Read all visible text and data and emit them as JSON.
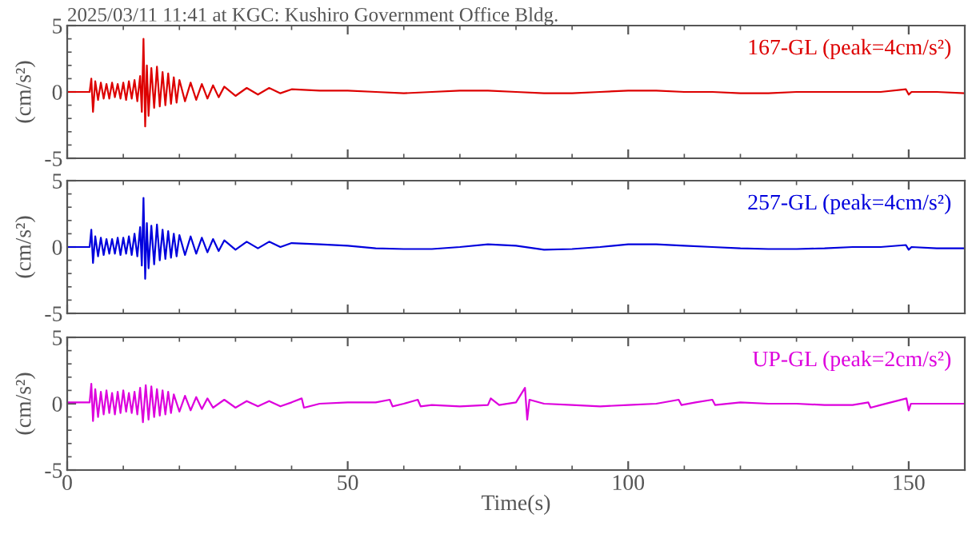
{
  "chart_data": [
    {
      "type": "line",
      "title": "2025/03/11 11:41 at KGC: Kushiro Government Office Bldg.",
      "ylabel": "(cm/s²)",
      "xlim": [
        0,
        160
      ],
      "ylim": [
        -5,
        5
      ],
      "xticks": [
        0,
        50,
        100,
        150
      ],
      "yticks": [
        -5,
        0,
        5
      ],
      "tick_labels": "y",
      "legend": "top right",
      "grid": false,
      "series": [
        {
          "name": "167-GL (peak=4cm/s²)",
          "color": "#dd0000",
          "x": [
            0,
            4,
            4.3,
            4.6,
            5,
            5.5,
            6,
            6.5,
            7,
            7.5,
            8,
            8.5,
            9,
            9.5,
            10,
            10.5,
            11,
            11.5,
            12,
            12.5,
            13,
            13.3,
            13.6,
            13.9,
            14.2,
            14.5,
            15,
            15.5,
            16,
            16.5,
            17,
            17.5,
            18,
            18.5,
            19,
            19.5,
            20,
            21,
            22,
            23,
            24,
            25,
            26,
            27,
            28,
            30,
            32,
            34,
            36,
            38,
            40,
            45,
            50,
            55,
            60,
            65,
            70,
            75,
            80,
            85,
            90,
            95,
            100,
            105,
            110,
            115,
            120,
            125,
            130,
            135,
            140,
            145,
            149.5,
            150,
            150.5,
            155,
            160
          ],
          "values": [
            0,
            0,
            1.0,
            -1.5,
            0.8,
            -0.6,
            0.7,
            -0.5,
            0.6,
            -0.5,
            0.7,
            -0.4,
            0.6,
            -0.5,
            0.7,
            -0.6,
            0.8,
            -0.5,
            0.9,
            -0.7,
            1.2,
            -1.5,
            4.0,
            -2.6,
            2.0,
            -1.8,
            1.8,
            -1.2,
            1.9,
            -1.1,
            1.5,
            -1.0,
            1.4,
            -0.9,
            1.1,
            -0.8,
            0.9,
            -0.7,
            0.7,
            -0.6,
            0.6,
            -0.5,
            0.5,
            -0.4,
            0.4,
            -0.3,
            0.3,
            -0.2,
            0.3,
            -0.1,
            0.2,
            0.1,
            0.1,
            0.0,
            -0.1,
            0.0,
            0.1,
            0.1,
            0.0,
            -0.1,
            -0.1,
            0.0,
            0.1,
            0.1,
            0.0,
            0.0,
            -0.1,
            -0.1,
            0.0,
            0.0,
            0.0,
            0.0,
            0.2,
            -0.2,
            0.0,
            0.0,
            -0.1
          ]
        }
      ]
    },
    {
      "type": "line",
      "ylabel": "(cm/s²)",
      "xlim": [
        0,
        160
      ],
      "ylim": [
        -5,
        5
      ],
      "xticks": [
        0,
        50,
        100,
        150
      ],
      "yticks": [
        -5,
        0,
        5
      ],
      "tick_labels": "y",
      "legend": "top right",
      "grid": false,
      "series": [
        {
          "name": "257-GL (peak=4cm/s²)",
          "color": "#0000dd",
          "x": [
            0,
            4,
            4.3,
            4.6,
            5,
            5.5,
            6,
            6.5,
            7,
            7.5,
            8,
            8.5,
            9,
            9.5,
            10,
            10.5,
            11,
            11.5,
            12,
            12.5,
            13,
            13.3,
            13.6,
            13.9,
            14.2,
            14.5,
            15,
            15.5,
            16,
            16.5,
            17,
            17.5,
            18,
            18.5,
            19,
            19.5,
            20,
            21,
            22,
            23,
            24,
            25,
            26,
            27,
            28,
            30,
            32,
            34,
            36,
            38,
            40,
            45,
            50,
            55,
            60,
            65,
            70,
            75,
            80,
            85,
            90,
            95,
            100,
            105,
            110,
            115,
            120,
            125,
            130,
            135,
            140,
            145,
            149.5,
            150,
            150.5,
            155,
            160
          ],
          "values": [
            0,
            0,
            1.3,
            -1.2,
            0.8,
            -0.7,
            0.7,
            -0.6,
            0.6,
            -0.5,
            0.6,
            -0.5,
            0.7,
            -0.6,
            0.7,
            -0.5,
            0.8,
            -0.6,
            1.0,
            -0.7,
            1.5,
            -1.4,
            3.7,
            -2.4,
            1.8,
            -1.6,
            1.6,
            -1.3,
            1.7,
            -1.0,
            1.3,
            -0.9,
            1.2,
            -0.8,
            1.0,
            -0.7,
            0.9,
            -0.6,
            0.8,
            -0.5,
            0.7,
            -0.4,
            0.6,
            -0.3,
            0.5,
            -0.2,
            0.4,
            -0.1,
            0.4,
            0.0,
            0.3,
            0.2,
            0.1,
            -0.1,
            -0.15,
            -0.15,
            0.0,
            0.2,
            0.1,
            -0.2,
            -0.15,
            0.0,
            0.2,
            0.2,
            0.1,
            0.0,
            -0.1,
            -0.15,
            -0.15,
            -0.1,
            0.0,
            0.0,
            0.15,
            -0.2,
            0.0,
            -0.1,
            -0.1
          ]
        }
      ]
    },
    {
      "type": "line",
      "ylabel": "(cm/s²)",
      "xlabel": "Time(s)",
      "xlim": [
        0,
        160
      ],
      "ylim": [
        -5,
        5
      ],
      "xticks": [
        0,
        50,
        100,
        150
      ],
      "yticks": [
        -5,
        0,
        5
      ],
      "legend": "top right",
      "grid": false,
      "series": [
        {
          "name": "UP-GL (peak=2cm/s²)",
          "color": "#dd00dd",
          "x": [
            0,
            4,
            4.3,
            4.6,
            5,
            5.5,
            6,
            6.5,
            7,
            7.5,
            8,
            8.5,
            9,
            9.5,
            10,
            10.5,
            11,
            11.5,
            12,
            12.5,
            13,
            13.5,
            14,
            14.5,
            15,
            15.5,
            16,
            16.5,
            17,
            17.5,
            18,
            18.5,
            19,
            20,
            21,
            22,
            23,
            24,
            25,
            26,
            28,
            30,
            32,
            34,
            36,
            38,
            40,
            41.8,
            42.2,
            45,
            50,
            55,
            57.5,
            58,
            60,
            62.5,
            63,
            65,
            70,
            75,
            75.5,
            77,
            80,
            81.6,
            82,
            82.4,
            85,
            90,
            95,
            100,
            105,
            109,
            109.5,
            112,
            115,
            115.5,
            120,
            125,
            130,
            135,
            140,
            142.8,
            143.2,
            145,
            149.6,
            150,
            150.4,
            155,
            160
          ],
          "values": [
            0.1,
            0.1,
            1.5,
            -1.3,
            1.1,
            -1.0,
            0.9,
            -0.8,
            1.0,
            -0.7,
            0.8,
            -0.8,
            0.9,
            -0.7,
            1.0,
            -0.6,
            0.8,
            -0.7,
            0.9,
            -0.8,
            1.2,
            -1.4,
            1.4,
            -1.2,
            1.3,
            -1.0,
            1.1,
            -0.9,
            1.0,
            -0.8,
            0.9,
            -0.7,
            0.7,
            -0.6,
            0.6,
            -0.5,
            0.5,
            -0.4,
            0.4,
            -0.3,
            0.3,
            -0.3,
            0.2,
            -0.2,
            0.2,
            -0.2,
            0.1,
            0.4,
            -0.3,
            0.0,
            0.1,
            0.1,
            0.3,
            -0.2,
            0.0,
            0.3,
            -0.2,
            -0.1,
            -0.2,
            -0.1,
            0.4,
            -0.1,
            0.1,
            1.2,
            -1.2,
            0.3,
            0.0,
            -0.1,
            -0.2,
            -0.1,
            0.0,
            0.3,
            -0.1,
            0.1,
            0.3,
            -0.1,
            0.1,
            0.0,
            0.0,
            -0.1,
            -0.1,
            0.1,
            -0.3,
            -0.1,
            0.4,
            -0.5,
            0.0,
            0.0,
            0.0
          ]
        }
      ]
    }
  ]
}
